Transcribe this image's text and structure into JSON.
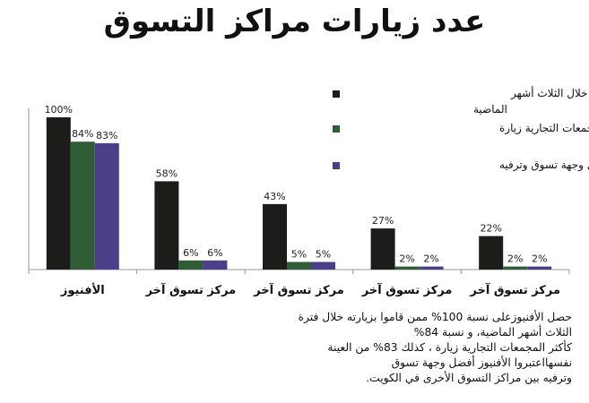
{
  "chart_data": {
    "type": "bar",
    "title": "عدد زيارات مراكز التسوق",
    "categories": [
      "الأفنيوز",
      "مركز تسوق آخر",
      "مركز تسوق آخر",
      "مركز تسوق آخر",
      "مركز تسوق آخر"
    ],
    "series": [
      {
        "name": "أكثر زيارة خلال الثلاث أشهر الماضية",
        "color": "#1c1c1a",
        "values": [
          100,
          58,
          43,
          27,
          22
        ]
      },
      {
        "name": "أكثر المجمعات التجارية زيارة",
        "color": "#2f5e36",
        "values": [
          84,
          6,
          5,
          2,
          2
        ]
      },
      {
        "name": "أفضل وجهة تسوق وترفيه",
        "color": "#4b3f8a",
        "values": [
          83,
          6,
          5,
          2,
          2
        ]
      }
    ],
    "value_suffix": "%",
    "ylim": [
      0,
      100
    ],
    "grid": false,
    "legend_position": "top-right"
  },
  "note": {
    "line1": "حصل الأفنيوزعلى نسبة 100% ممن قاموا بزيارته خلال فترة الثلاث أشهر الماضية، و نسبة 84%",
    "line2": "كأكثر المجمعات التجارية زيارة ، كذلك 83% من العينة  نفسهااعتبروا الأفنيوز أفضل وجهة تسوق",
    "line3": "وترفيه بين مراكز التسوق الأخرى في الكويت."
  }
}
